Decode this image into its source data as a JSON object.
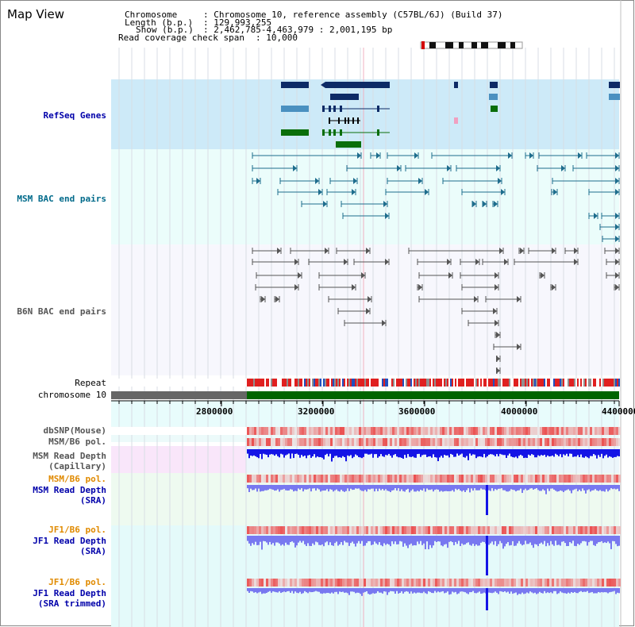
{
  "header": {
    "title": "Map View",
    "chromosome_key": "Chromosome",
    "chromosome_value": ": Chromosome 10, reference assembly (C57BL/6J) (Build 37)",
    "length_key": "Length (b.p.)",
    "length_value": ": 129,993,255",
    "show_key": "Show (b.p.)",
    "show_value": ": 2,462,785-4,463,979 : 2,001,195 bp",
    "coverage_key": "Read coverage check span",
    "coverage_value": ": 10,000"
  },
  "tracks": {
    "refseq": "RefSeq Genes",
    "msm_bac": "MSM BAC end pairs",
    "b6n_bac": "B6N BAC end pairs",
    "repeat": "Repeat",
    "chromosome": "chromosome 10",
    "dbsnp": "dbSNP(Mouse)",
    "msm_b6_pol_1": "MSM/B6 pol.",
    "msm_read_depth_cap_1": "MSM Read Depth",
    "msm_read_depth_cap_2": "(Capillary)",
    "msm_b6_pol_2": "MSM/B6 pol.",
    "msm_read_depth_sra_1": "MSM Read Depth",
    "msm_read_depth_sra_2": "(SRA)",
    "jf1_b6_pol_1": "JF1/B6 pol.",
    "jf1_read_depth_sra_1": "JF1 Read Depth",
    "jf1_read_depth_sra_2": "(SRA)",
    "jf1_b6_pol_2": "JF1/B6 pol.",
    "jf1_read_depth_trim_1": "JF1 Read Depth",
    "jf1_read_depth_trim_2": "(SRA trimmed)"
  },
  "axis": {
    "ticks": [
      "2800000",
      "3200000",
      "3600000",
      "4000000",
      "4400000"
    ]
  },
  "colors": {
    "refseq_bg": "#cdeaf8",
    "bac_bg": "#ebfdfb",
    "b6n_bg": "#f7f7fd",
    "gene_navy": "#0d2a66",
    "gene_lightblue": "#4a90c0",
    "gene_green": "#0a6e0a",
    "bac_teal": "#1e6d8d",
    "depth_blue": "#1414e6",
    "depth_light": "#7878f0",
    "snp_red": "#e04040",
    "chrom_green": "#006400"
  }
}
